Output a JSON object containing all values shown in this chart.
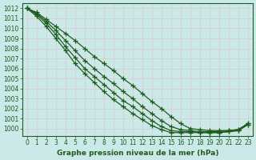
{
  "xlabel": "Graphe pression niveau de la mer (hPa)",
  "xlim": [
    -0.5,
    23.5
  ],
  "ylim": [
    999.3,
    1012.5
  ],
  "yticks": [
    1000,
    1001,
    1002,
    1003,
    1004,
    1005,
    1006,
    1007,
    1008,
    1009,
    1010,
    1011,
    1012
  ],
  "xticks": [
    0,
    1,
    2,
    3,
    4,
    5,
    6,
    7,
    8,
    9,
    10,
    11,
    12,
    13,
    14,
    15,
    16,
    17,
    18,
    19,
    20,
    21,
    22,
    23
  ],
  "bg_color": "#cce9e9",
  "grid_color": "#e8e8e8",
  "line_color": "#1e5c1e",
  "series": [
    [
      1012.0,
      1011.6,
      1010.9,
      1010.2,
      1009.5,
      1008.8,
      1008.0,
      1007.2,
      1006.5,
      1005.8,
      1005.0,
      1004.3,
      1003.5,
      1002.7,
      1002.0,
      1001.2,
      1000.5,
      1000.0,
      999.9,
      999.8,
      999.8,
      999.8,
      999.9,
      1000.5
    ],
    [
      1012.0,
      1011.5,
      1010.7,
      1009.8,
      1008.8,
      1007.8,
      1006.8,
      1006.0,
      1005.2,
      1004.5,
      1003.7,
      1003.0,
      1002.2,
      1001.5,
      1000.8,
      1000.2,
      999.9,
      999.8,
      999.7,
      999.7,
      999.7,
      999.8,
      999.9,
      1000.5
    ],
    [
      1012.0,
      1011.4,
      1010.5,
      1009.4,
      1008.2,
      1007.1,
      1006.0,
      1005.2,
      1004.4,
      1003.6,
      1002.8,
      1002.2,
      1001.5,
      1000.8,
      1000.2,
      999.8,
      999.7,
      999.7,
      999.6,
      999.6,
      999.6,
      999.7,
      999.8,
      1000.4
    ],
    [
      1012.0,
      1011.2,
      1010.2,
      1009.0,
      1007.8,
      1006.5,
      1005.5,
      1004.6,
      1003.7,
      1002.9,
      1002.2,
      1001.5,
      1000.9,
      1000.3,
      999.9,
      999.6,
      999.6,
      999.6,
      999.6,
      999.6,
      999.6,
      999.7,
      999.8,
      1000.4
    ]
  ],
  "marker": "+",
  "markersize": 4,
  "linewidth": 0.9,
  "tick_fontsize": 5.5,
  "label_fontsize": 6.5,
  "label_fontweight": "bold"
}
